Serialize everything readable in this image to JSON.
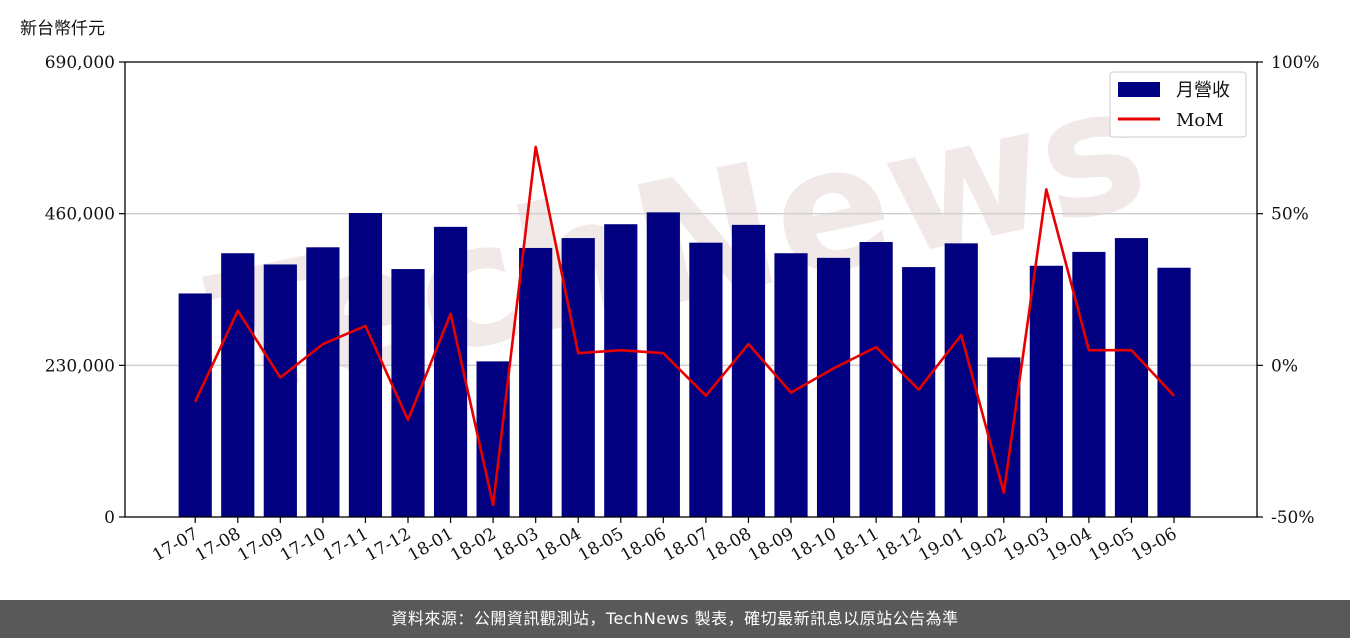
{
  "watermark": "TechNews",
  "footer": {
    "source_text": "資料來源：公開資訊觀測站，TechNews 製表，確切最新訊息以原站公告為準"
  },
  "chart_data": {
    "type": "bar+line",
    "left_axis_label": "新台幣仟元",
    "categories": [
      "17-07",
      "17-08",
      "17-09",
      "17-10",
      "17-11",
      "17-12",
      "18-01",
      "18-02",
      "18-03",
      "18-04",
      "18-05",
      "18-06",
      "18-07",
      "18-08",
      "18-09",
      "18-10",
      "18-11",
      "18-12",
      "19-01",
      "19-02",
      "19-03",
      "19-04",
      "19-05",
      "19-06"
    ],
    "y_left": {
      "ylim": [
        0,
        690000
      ],
      "ticks": [
        0,
        230000,
        460000,
        690000
      ],
      "tick_labels": [
        "0",
        "230,000",
        "460,000",
        "690,000"
      ]
    },
    "y_right": {
      "ylim": [
        -50,
        100
      ],
      "ticks": [
        -50,
        0,
        50,
        100
      ],
      "tick_labels": [
        "-50%",
        "0%",
        "50%",
        "100%"
      ]
    },
    "grid": "horizontal",
    "legend_position": "top-right",
    "series": [
      {
        "name": "月營收",
        "type": "bar",
        "axis": "left",
        "color": "#000080",
        "values": [
          339000,
          400000,
          383000,
          409000,
          461000,
          376000,
          440000,
          236000,
          408000,
          423000,
          444000,
          462000,
          416000,
          443000,
          400000,
          393000,
          417000,
          379000,
          415000,
          242000,
          381000,
          402000,
          423000,
          378000
        ]
      },
      {
        "name": "MoM",
        "type": "line",
        "axis": "right",
        "color": "#e60000",
        "values": [
          -12,
          18,
          -4,
          7,
          13,
          -18,
          17,
          -46,
          72,
          4,
          5,
          4,
          -10,
          7,
          -9,
          -1,
          6,
          -8,
          10,
          -42,
          58,
          5,
          5,
          -10
        ]
      }
    ]
  }
}
